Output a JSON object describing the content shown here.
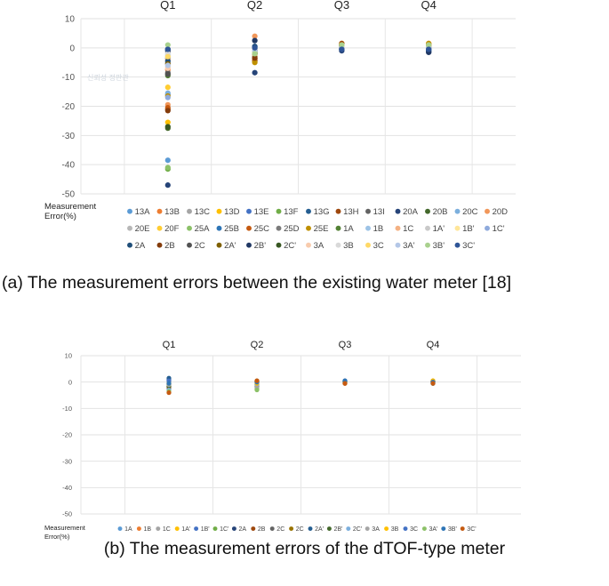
{
  "captions": {
    "a": "(a) The measurement errors between the existing water meter [18]",
    "b": "(b) The measurement errors of the dTOF-type meter"
  },
  "chart_data": [
    {
      "type": "scatter",
      "title": "",
      "xlabel": "",
      "ylabel": "Measurement Error(%)",
      "categories": [
        "Q1",
        "Q2",
        "Q3",
        "Q4"
      ],
      "ylim": [
        -50,
        10
      ],
      "yticks": [
        10,
        0,
        -10,
        -20,
        -30,
        -40,
        -50
      ],
      "grid": true,
      "watermark": "신뢰성 정판관",
      "legend_position": "bottom",
      "series": [
        {
          "name": "13A",
          "color": "#5b9bd5",
          "values": [
            -38.5,
            -1.0,
            0.5,
            0.2
          ]
        },
        {
          "name": "13B",
          "color": "#ed7d31",
          "values": [
            -7.5,
            -4.0,
            1.0,
            1.5
          ]
        },
        {
          "name": "13C",
          "color": "#a5a5a5",
          "values": [
            -9.0,
            -2.0,
            0.5,
            0.5
          ]
        },
        {
          "name": "13D",
          "color": "#ffc000",
          "values": [
            -25.5,
            -3.0,
            1.5,
            1.0
          ]
        },
        {
          "name": "13E",
          "color": "#4472c4",
          "values": [
            -16.0,
            0.5,
            -0.5,
            -0.5
          ]
        },
        {
          "name": "13F",
          "color": "#70ad47",
          "values": [
            -41.5,
            -1.5,
            0.5,
            0.5
          ]
        },
        {
          "name": "13G",
          "color": "#255e91",
          "values": [
            -0.5,
            0.0,
            1.0,
            -1.0
          ]
        },
        {
          "name": "13H",
          "color": "#9e480e",
          "values": [
            -21.0,
            -4.5,
            1.5,
            1.0
          ]
        },
        {
          "name": "13I",
          "color": "#636363",
          "values": [
            -8.5,
            -3.0,
            0.0,
            0.0
          ]
        },
        {
          "name": "20A",
          "color": "#264478",
          "values": [
            -47.0,
            -8.5,
            -1.0,
            -1.5
          ]
        },
        {
          "name": "20B",
          "color": "#43682b",
          "values": [
            -27.5,
            -1.0,
            0.5,
            0.5
          ]
        },
        {
          "name": "20C",
          "color": "#7cafdd",
          "values": [
            -15.5,
            -0.5,
            0.5,
            0.5
          ]
        },
        {
          "name": "20D",
          "color": "#f1975a",
          "values": [
            -19.5,
            4.0,
            1.0,
            1.0
          ]
        },
        {
          "name": "20E",
          "color": "#b7b7b7",
          "values": [
            -1.5,
            -2.5,
            0.0,
            0.5
          ]
        },
        {
          "name": "20F",
          "color": "#ffcd33",
          "values": [
            -13.5,
            -1.0,
            0.5,
            0.5
          ]
        },
        {
          "name": "25A",
          "color": "#8cc168",
          "values": [
            -41.0,
            -2.0,
            0.5,
            0.5
          ]
        },
        {
          "name": "25B",
          "color": "#2e75b6",
          "values": [
            -3.5,
            -1.5,
            0.0,
            -0.5
          ]
        },
        {
          "name": "25C",
          "color": "#c55a11",
          "values": [
            -20.5,
            -3.5,
            1.0,
            1.0
          ]
        },
        {
          "name": "25D",
          "color": "#7b7b7b",
          "values": [
            -5.0,
            -2.0,
            0.5,
            0.5
          ]
        },
        {
          "name": "25E",
          "color": "#bf9000",
          "values": [
            -16.5,
            -5.0,
            1.0,
            1.5
          ]
        },
        {
          "name": "1A",
          "color": "#548235",
          "values": [
            -9.5,
            -1.0,
            0.5,
            0.5
          ]
        },
        {
          "name": "1B",
          "color": "#9dc3e6",
          "values": [
            -2.5,
            -0.5,
            0.0,
            0.0
          ]
        },
        {
          "name": "1C",
          "color": "#f4b183",
          "values": [
            -4.0,
            -2.5,
            0.5,
            0.5
          ]
        },
        {
          "name": "1A'",
          "color": "#c9c9c9",
          "values": [
            -6.5,
            -1.5,
            0.0,
            0.0
          ]
        },
        {
          "name": "1B'",
          "color": "#ffe699",
          "values": [
            -3.0,
            -1.0,
            0.5,
            0.5
          ]
        },
        {
          "name": "1C'",
          "color": "#8faadc",
          "values": [
            -17.0,
            -1.0,
            0.5,
            0.5
          ]
        },
        {
          "name": "2A",
          "color": "#1f4e79",
          "values": [
            -4.5,
            0.5,
            -0.5,
            -1.0
          ]
        },
        {
          "name": "2B",
          "color": "#843c0c",
          "values": [
            -21.5,
            -3.5,
            1.0,
            0.5
          ]
        },
        {
          "name": "2C",
          "color": "#525252",
          "values": [
            -9.0,
            -1.5,
            0.0,
            0.0
          ]
        },
        {
          "name": "2A'",
          "color": "#7f6000",
          "values": [
            -5.5,
            -2.0,
            1.0,
            1.0
          ]
        },
        {
          "name": "2B'",
          "color": "#203864",
          "values": [
            -1.0,
            2.5,
            -0.5,
            -1.5
          ]
        },
        {
          "name": "2C'",
          "color": "#385723",
          "values": [
            -27.0,
            -1.5,
            0.5,
            0.5
          ]
        },
        {
          "name": "3A",
          "color": "#f8cbad",
          "values": [
            -7.0,
            -0.5,
            0.5,
            0.5
          ]
        },
        {
          "name": "3B",
          "color": "#d9d9d9",
          "values": [
            -2.0,
            -1.5,
            0.5,
            0.5
          ]
        },
        {
          "name": "3C",
          "color": "#ffd966",
          "values": [
            -3.0,
            -1.5,
            1.0,
            1.0
          ]
        },
        {
          "name": "3A'",
          "color": "#b4c7e7",
          "values": [
            -6.0,
            -1.0,
            0.0,
            0.0
          ]
        },
        {
          "name": "3B'",
          "color": "#a9d18e",
          "values": [
            1.0,
            -2.0,
            1.0,
            1.0
          ]
        },
        {
          "name": "3C'",
          "color": "#2f5597",
          "values": [
            -0.5,
            0.0,
            -0.5,
            -0.5
          ]
        }
      ]
    },
    {
      "type": "scatter",
      "title": "",
      "xlabel": "",
      "ylabel": "Measurement Error(%)",
      "categories": [
        "Q1",
        "Q2",
        "Q3",
        "Q4"
      ],
      "ylim": [
        -50,
        10
      ],
      "yticks": [
        10,
        0,
        -10,
        -20,
        -30,
        -40,
        -50
      ],
      "grid": true,
      "legend_position": "bottom",
      "series": [
        {
          "name": "1A",
          "color": "#5b9bd5",
          "values": [
            -2.5,
            -1.0,
            0.0,
            0.0
          ]
        },
        {
          "name": "1B",
          "color": "#ed7d31",
          "values": [
            -4.0,
            0.5,
            -0.5,
            0.5
          ]
        },
        {
          "name": "1C",
          "color": "#a5a5a5",
          "values": [
            -1.0,
            -2.0,
            0.0,
            0.0
          ]
        },
        {
          "name": "1A'",
          "color": "#ffc000",
          "values": [
            -0.5,
            0.0,
            0.0,
            0.5
          ]
        },
        {
          "name": "1B'",
          "color": "#4472c4",
          "values": [
            1.0,
            -0.5,
            0.5,
            -0.5
          ]
        },
        {
          "name": "1C'",
          "color": "#70ad47",
          "values": [
            -1.5,
            -2.5,
            0.0,
            0.0
          ]
        },
        {
          "name": "2A",
          "color": "#264478",
          "values": [
            0.5,
            0.0,
            0.5,
            -0.5
          ]
        },
        {
          "name": "2B",
          "color": "#9e480e",
          "values": [
            -2.0,
            0.0,
            -0.5,
            0.0
          ]
        },
        {
          "name": "2C",
          "color": "#636363",
          "values": [
            -1.0,
            -1.0,
            0.0,
            0.0
          ]
        },
        {
          "name": "2C",
          "color": "#997300",
          "values": [
            -0.5,
            0.5,
            0.0,
            0.5
          ]
        },
        {
          "name": "2A'",
          "color": "#255e91",
          "values": [
            1.5,
            -0.5,
            0.0,
            0.0
          ]
        },
        {
          "name": "2B'",
          "color": "#43682b",
          "values": [
            -1.5,
            -1.5,
            0.0,
            0.0
          ]
        },
        {
          "name": "2C'",
          "color": "#7cafdd",
          "values": [
            -3.0,
            -1.0,
            0.0,
            0.0
          ]
        },
        {
          "name": "3A",
          "color": "#a5a5a5",
          "values": [
            -1.0,
            -2.0,
            0.0,
            0.0
          ]
        },
        {
          "name": "3B",
          "color": "#ffc000",
          "values": [
            -0.5,
            -0.5,
            0.0,
            0.5
          ]
        },
        {
          "name": "3C",
          "color": "#4472c4",
          "values": [
            0.5,
            0.0,
            0.0,
            0.0
          ]
        },
        {
          "name": "3A'",
          "color": "#8cc168",
          "values": [
            -3.5,
            -3.0,
            0.0,
            -0.5
          ]
        },
        {
          "name": "3B'",
          "color": "#2e75b6",
          "values": [
            -0.5,
            0.0,
            0.5,
            0.0
          ]
        },
        {
          "name": "3C'",
          "color": "#c55a11",
          "values": [
            -4.0,
            0.5,
            -0.5,
            -0.5
          ]
        }
      ]
    }
  ]
}
